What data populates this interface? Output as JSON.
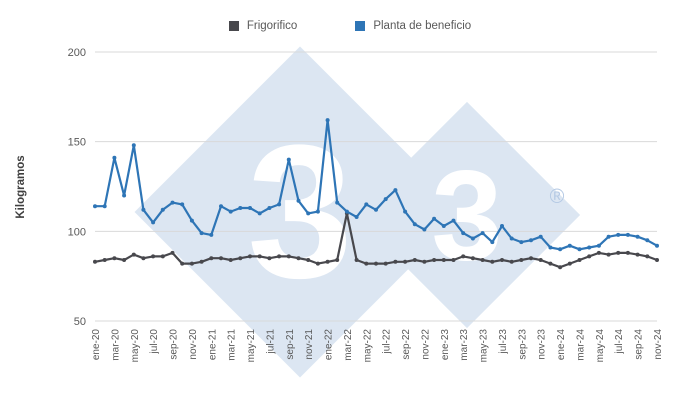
{
  "legend": [
    {
      "label": "Frigorifico",
      "color": "#48484d"
    },
    {
      "label": "Planta de beneficio",
      "color": "#2e75b6"
    }
  ],
  "y_axis": {
    "title": "Kilogramos",
    "ticks": [
      200,
      150,
      100,
      50
    ],
    "min": 50,
    "max": 200
  },
  "x_axis": {
    "tick_labels": [
      "ene-20",
      "mar-20",
      "may-20",
      "jul-20",
      "sep-20",
      "nov-20",
      "ene-21",
      "mar-21",
      "may-21",
      "jul-21",
      "sep-21",
      "nov-21",
      "ene-22",
      "mar-22",
      "may-22",
      "jul-22",
      "sep-22",
      "nov-22",
      "ene-23",
      "mar-23",
      "may-23",
      "jul-23",
      "sep-23",
      "nov-23",
      "ene-24",
      "mar-24",
      "may-24",
      "jul-24",
      "sep-24",
      "nov-24"
    ],
    "label_rotation": -90,
    "tick_every": 2
  },
  "watermark": {
    "text": "3",
    "registered_mark": "®",
    "fill": "#dce6f2",
    "glyph_color": "#ffffff",
    "mark_color": "#b4c9e4"
  },
  "colors": {
    "grid": "#d9d9d9",
    "axis_text": "#595959",
    "axis_title": "#404040",
    "background": "#ffffff"
  },
  "chart_data": {
    "type": "line",
    "title": "",
    "xlabel": "",
    "ylabel": "Kilogramos",
    "ylim": [
      50,
      200
    ],
    "grid": "horizontal",
    "legend_position": "top",
    "x": [
      "ene-20",
      "feb-20",
      "mar-20",
      "abr-20",
      "may-20",
      "jun-20",
      "jul-20",
      "ago-20",
      "sep-20",
      "oct-20",
      "nov-20",
      "dic-20",
      "ene-21",
      "feb-21",
      "mar-21",
      "abr-21",
      "may-21",
      "jun-21",
      "jul-21",
      "ago-21",
      "sep-21",
      "oct-21",
      "nov-21",
      "dic-21",
      "ene-22",
      "feb-22",
      "mar-22",
      "abr-22",
      "may-22",
      "jun-22",
      "jul-22",
      "ago-22",
      "sep-22",
      "oct-22",
      "nov-22",
      "dic-22",
      "ene-23",
      "feb-23",
      "mar-23",
      "abr-23",
      "may-23",
      "jun-23",
      "jul-23",
      "ago-23",
      "sep-23",
      "oct-23",
      "nov-23",
      "dic-23",
      "ene-24",
      "feb-24",
      "mar-24",
      "abr-24",
      "may-24",
      "jun-24",
      "jul-24",
      "ago-24",
      "sep-24",
      "oct-24",
      "nov-24"
    ],
    "series": [
      {
        "name": "Frigorifico",
        "color": "#48484d",
        "values": [
          83,
          84,
          85,
          84,
          87,
          85,
          86,
          86,
          88,
          82,
          82,
          83,
          85,
          85,
          84,
          85,
          86,
          86,
          85,
          86,
          86,
          85,
          84,
          82,
          83,
          84,
          110,
          84,
          82,
          82,
          82,
          83,
          83,
          84,
          83,
          84,
          84,
          84,
          86,
          85,
          84,
          83,
          84,
          83,
          84,
          85,
          84,
          82,
          80,
          82,
          84,
          86,
          88,
          87,
          88,
          88,
          87,
          86,
          84
        ]
      },
      {
        "name": "Planta de beneficio",
        "color": "#2e75b6",
        "values": [
          114,
          114,
          141,
          120,
          148,
          112,
          105,
          112,
          116,
          115,
          106,
          99,
          98,
          114,
          111,
          113,
          113,
          110,
          113,
          115,
          140,
          117,
          110,
          111,
          162,
          116,
          111,
          108,
          115,
          112,
          118,
          123,
          111,
          104,
          101,
          107,
          103,
          106,
          99,
          96,
          99,
          94,
          103,
          96,
          94,
          95,
          97,
          91,
          90,
          92,
          90,
          91,
          92,
          97,
          98,
          98,
          97,
          95,
          92
        ]
      }
    ]
  }
}
